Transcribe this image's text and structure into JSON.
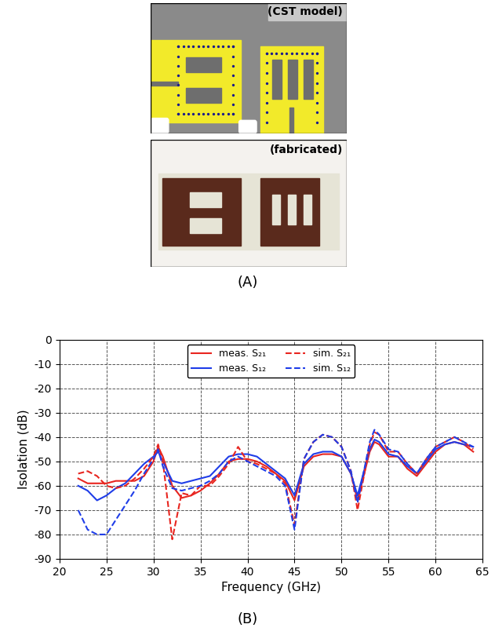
{
  "figure": {
    "panels": [
      {
        "label": "(A)",
        "images": [
          "(CST model)",
          "(fabricated)"
        ]
      },
      {
        "label": "(B)"
      }
    ]
  },
  "chart_data": {
    "type": "line",
    "x_label": "Frequency (GHz)",
    "y_label": "Isolation (dB)",
    "x": [
      22,
      23,
      24,
      25,
      26,
      27,
      28,
      29,
      30,
      30.5,
      31,
      32,
      33,
      34,
      35,
      36,
      37,
      38,
      39,
      40,
      41,
      42,
      43,
      44,
      45,
      46,
      47,
      48,
      49,
      50,
      51,
      51.7,
      53,
      53.5,
      54,
      55,
      56,
      57,
      58,
      59,
      60,
      61,
      62,
      63,
      64
    ],
    "series": [
      {
        "name": "meas. S₂₁",
        "color": "#e8251f",
        "line_style": "solid",
        "values": [
          -57,
          -59,
          -59,
          -59,
          -58,
          -58,
          -58,
          -56,
          -50,
          -44,
          -48,
          -60,
          -65,
          -64,
          -62,
          -59,
          -55,
          -50,
          -49,
          -49,
          -50,
          -52,
          -55,
          -58,
          -66,
          -52,
          -48,
          -47,
          -47,
          -48,
          -55,
          -66,
          -46,
          -42,
          -43,
          -48,
          -48,
          -53,
          -56,
          -51,
          -46,
          -43,
          -42,
          -43,
          -46
        ]
      },
      {
        "name": "meas. S₁₂",
        "color": "#1f3de8",
        "line_style": "solid",
        "values": [
          -60,
          -62,
          -66,
          -64,
          -61,
          -59,
          -55,
          -51,
          -48,
          -46,
          -50,
          -58,
          -59,
          -58,
          -57,
          -56,
          -52,
          -48,
          -47,
          -47,
          -48,
          -51,
          -54,
          -57,
          -64,
          -51,
          -47,
          -46,
          -46,
          -48,
          -55,
          -64,
          -45,
          -41,
          -42,
          -47,
          -48,
          -52,
          -55,
          -50,
          -45,
          -43,
          -42,
          -43,
          -44
        ]
      },
      {
        "name": "sim. S₂₁",
        "color": "#e8251f",
        "line_style": "dashed",
        "values": [
          -55,
          -54,
          -56,
          -60,
          -61,
          -60,
          -57,
          -53,
          -48,
          -43,
          -50,
          -82,
          -63,
          -64,
          -60,
          -60,
          -56,
          -51,
          -44,
          -50,
          -51,
          -53,
          -55,
          -59,
          -76,
          -49,
          -42,
          -39,
          -40,
          -44,
          -54,
          -70,
          -43,
          -38,
          -39,
          -46,
          -46,
          -51,
          -55,
          -49,
          -44,
          -42,
          -40,
          -42,
          -45
        ]
      },
      {
        "name": "sim. S₁₂",
        "color": "#1f3de8",
        "line_style": "dashed",
        "values": [
          -70,
          -78,
          -80,
          -80,
          -74,
          -68,
          -62,
          -55,
          -49,
          -45,
          -52,
          -61,
          -62,
          -61,
          -60,
          -58,
          -55,
          -50,
          -48,
          -50,
          -52,
          -54,
          -56,
          -60,
          -78,
          -49,
          -42,
          -39,
          -40,
          -44,
          -54,
          -67,
          -42,
          -37,
          -39,
          -45,
          -46,
          -51,
          -55,
          -49,
          -44,
          -42,
          -40,
          -42,
          -44
        ]
      }
    ],
    "xlim": [
      20,
      65
    ],
    "xticks": [
      20,
      25,
      30,
      35,
      40,
      45,
      50,
      55,
      60,
      65
    ],
    "ylim": [
      -90,
      0
    ],
    "yticks": [
      -90,
      -80,
      -70,
      -60,
      -50,
      -40,
      -30,
      -20,
      -10,
      0
    ],
    "grid": true,
    "legend": "upper center"
  }
}
